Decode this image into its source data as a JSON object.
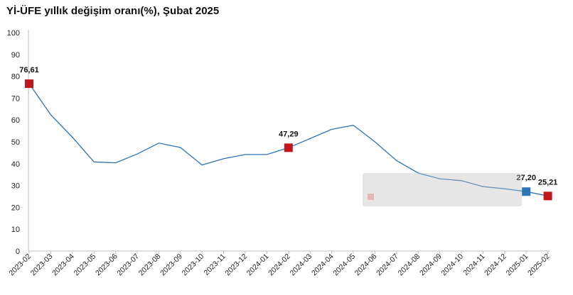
{
  "title": "Yİ-ÜFE yıllık değişim oranı(%), Şubat 2025",
  "chart_data": {
    "type": "line",
    "title": "Yİ-ÜFE yıllık değişim oranı(%), Şubat 2025",
    "xlabel": "",
    "ylabel": "",
    "ylim": [
      0,
      100
    ],
    "yticks": [
      0,
      10,
      20,
      30,
      40,
      50,
      60,
      70,
      80,
      90,
      100
    ],
    "categories": [
      "2023-02",
      "2023-03",
      "2023-04",
      "2023-05",
      "2023-06",
      "2023-07",
      "2023-08",
      "2023-09",
      "2023-10",
      "2023-11",
      "2023-12",
      "2024-01",
      "2024-02",
      "2024-03",
      "2024-04",
      "2024-05",
      "2024-06",
      "2024-07",
      "2024-08",
      "2024-09",
      "2024-10",
      "2024-11",
      "2024-12",
      "2025-01",
      "2025-02"
    ],
    "series": [
      {
        "values": [
          76.61,
          62.4,
          52.1,
          40.8,
          40.4,
          44.4,
          49.4,
          47.4,
          39.4,
          42.3,
          44.2,
          44.2,
          47.29,
          51.5,
          55.7,
          57.6,
          50.0,
          41.4,
          35.7,
          33.1,
          32.2,
          29.5,
          28.5,
          27.2,
          25.21
        ],
        "color": "#2e75b6"
      }
    ],
    "highlights": [
      {
        "index": 0,
        "label": "76,61",
        "color": "#c0161c"
      },
      {
        "index": 12,
        "label": "47,29",
        "color": "#c0161c"
      },
      {
        "index": 23,
        "label": "27,20",
        "color": "#2e75b6"
      },
      {
        "index": 24,
        "label": "25,21",
        "color": "#c0161c"
      }
    ],
    "grid": false,
    "legend": {
      "placement": "center-right",
      "overlay": "semi-transparent tooltip box",
      "marker_color": "#e8b4b4"
    }
  }
}
